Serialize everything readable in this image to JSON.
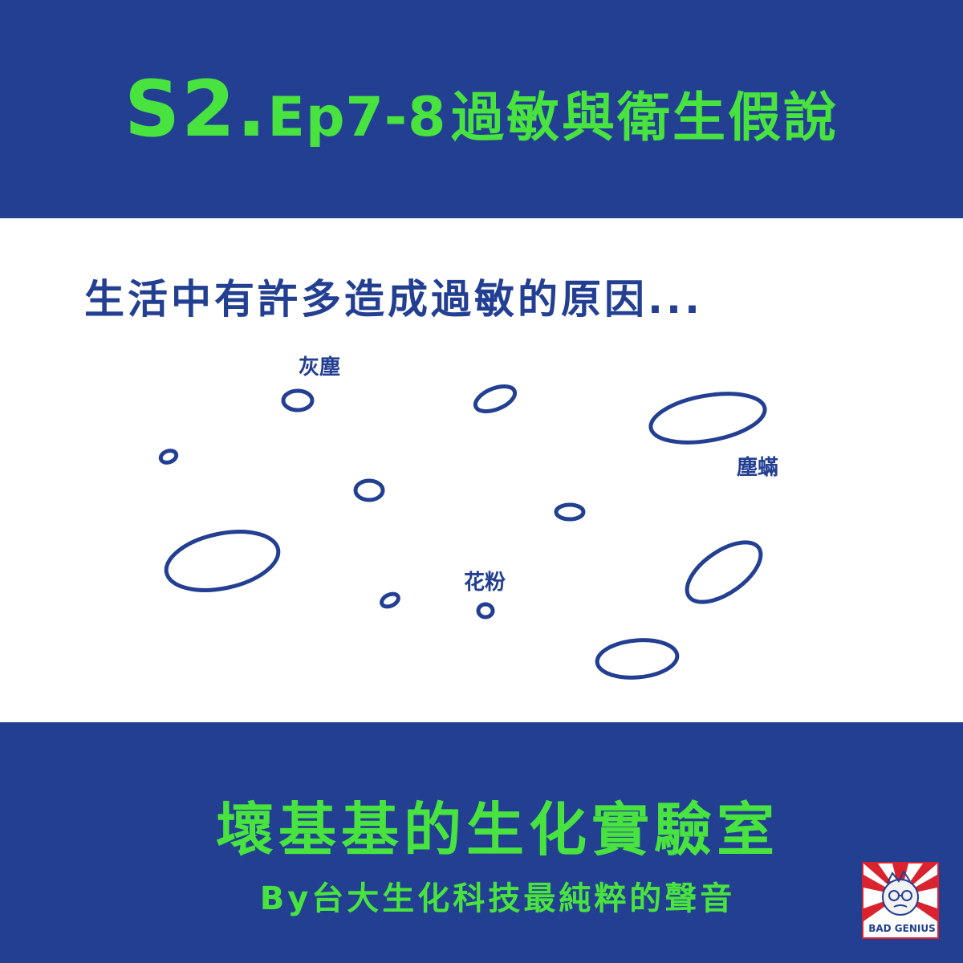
{
  "header": {
    "season": "S2.",
    "episode": "Ep7-8",
    "title": "過敏與衛生假說"
  },
  "content": {
    "subtitle": "生活中有許多造成過敏的原因...",
    "labels": {
      "dust": "灰塵",
      "dust_mites": "塵蟎",
      "pollen": "花粉"
    }
  },
  "footer": {
    "show_name": "壞基基的生化實驗室",
    "byline": "By台大生化科技最純粹的聲音",
    "logo_text": "BAD GENIUS"
  },
  "colors": {
    "navy": "#233f92",
    "green": "#49e33f",
    "white": "#ffffff",
    "logo_red": "#d9232e"
  }
}
